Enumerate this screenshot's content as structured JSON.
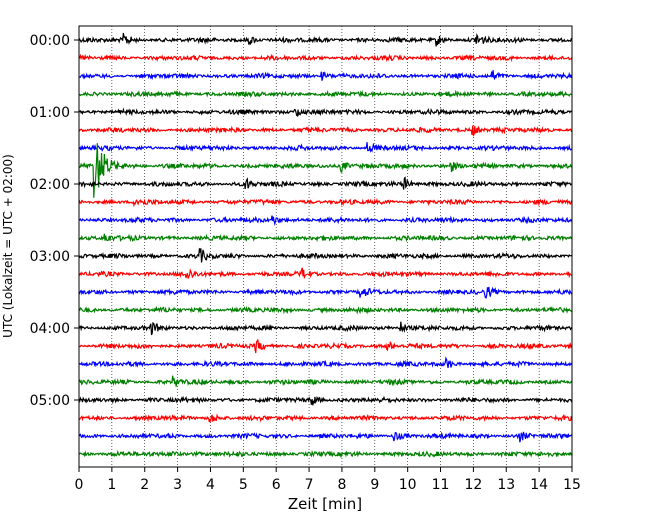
{
  "chart_data": {
    "type": "line",
    "chart_kind": "helicorder",
    "xlabel": "Zeit  [min]",
    "ylabel": "UTC (Lokalzeit = UTC + 02:00)",
    "xlim": [
      0,
      15
    ],
    "x_ticks": [
      "0",
      "1",
      "2",
      "3",
      "4",
      "5",
      "6",
      "7",
      "8",
      "9",
      "10",
      "11",
      "12",
      "13",
      "14",
      "15"
    ],
    "y_tick_labels": [
      "00:00",
      "01:00",
      "02:00",
      "03:00",
      "04:00",
      "05:00"
    ],
    "y_tick_row_index": [
      0,
      4,
      8,
      12,
      16,
      20
    ],
    "row_interval_min": 15,
    "row_count": 24,
    "vertical_grid": "dotted",
    "trace_colors": [
      "#000000",
      "#ff0000",
      "#0000ff",
      "#008000"
    ],
    "events": [
      {
        "row": 0,
        "minute": 1.4,
        "amp": 5
      },
      {
        "row": 0,
        "minute": 5.2,
        "amp": 4
      },
      {
        "row": 0,
        "minute": 10.9,
        "amp": 5
      },
      {
        "row": 0,
        "minute": 12.1,
        "amp": 7
      },
      {
        "row": 2,
        "minute": 7.4,
        "amp": 4
      },
      {
        "row": 2,
        "minute": 12.6,
        "amp": 4
      },
      {
        "row": 4,
        "minute": 6.6,
        "amp": 5
      },
      {
        "row": 5,
        "minute": 12.0,
        "amp": 5
      },
      {
        "row": 6,
        "minute": 8.8,
        "amp": 5
      },
      {
        "row": 7,
        "minute": 0.5,
        "amp": 32
      },
      {
        "row": 7,
        "minute": 8.0,
        "amp": 6
      },
      {
        "row": 7,
        "minute": 11.3,
        "amp": 6
      },
      {
        "row": 8,
        "minute": 5.1,
        "amp": 5
      },
      {
        "row": 8,
        "minute": 9.9,
        "amp": 6
      },
      {
        "row": 9,
        "minute": 1.7,
        "amp": 5
      },
      {
        "row": 10,
        "minute": 5.9,
        "amp": 5
      },
      {
        "row": 11,
        "minute": 0.8,
        "amp": 5
      },
      {
        "row": 12,
        "minute": 3.7,
        "amp": 6
      },
      {
        "row": 13,
        "minute": 3.3,
        "amp": 5
      },
      {
        "row": 13,
        "minute": 6.8,
        "amp": 4
      },
      {
        "row": 14,
        "minute": 8.6,
        "amp": 5
      },
      {
        "row": 14,
        "minute": 12.4,
        "amp": 5
      },
      {
        "row": 16,
        "minute": 2.2,
        "amp": 5
      },
      {
        "row": 16,
        "minute": 9.8,
        "amp": 6
      },
      {
        "row": 17,
        "minute": 5.4,
        "amp": 6
      },
      {
        "row": 17,
        "minute": 9.4,
        "amp": 5
      },
      {
        "row": 18,
        "minute": 11.2,
        "amp": 5
      },
      {
        "row": 19,
        "minute": 2.9,
        "amp": 5
      },
      {
        "row": 20,
        "minute": 7.1,
        "amp": 5
      },
      {
        "row": 21,
        "minute": 4.0,
        "amp": 5
      },
      {
        "row": 22,
        "minute": 9.6,
        "amp": 5
      },
      {
        "row": 22,
        "minute": 13.4,
        "amp": 5
      },
      {
        "row": 23,
        "minute": 2.8,
        "amp": 4
      }
    ]
  }
}
